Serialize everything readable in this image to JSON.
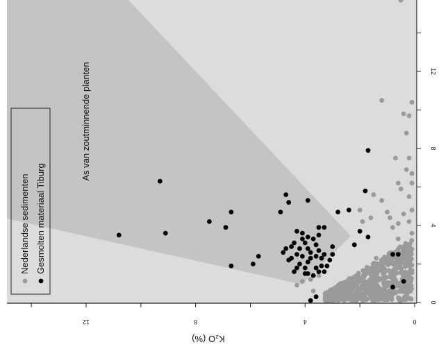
{
  "chart_data": {
    "type": "scatter",
    "orientation_note": "figure is shown rotated 180 degrees (upside down)",
    "xlabel": "K₂O (%)",
    "x_ticks": [
      0,
      4,
      8,
      12
    ],
    "x_tick_labels": [
      "0",
      "4",
      "8",
      "12"
    ],
    "y_ticks": [
      0,
      4,
      8,
      12
    ],
    "y_tick_labels": [
      "0",
      "4",
      "8",
      "12"
    ],
    "xlim": [
      0,
      15.5
    ],
    "ylim": [
      0,
      15.5
    ],
    "region_label": "As van zoutminnende planten",
    "region_color": "#c4c4c4",
    "background_color": "#dcdcdc",
    "legend_position": "right",
    "series": [
      {
        "name": "Nederlandse sedimenten",
        "color": "#9a9a9a",
        "cluster": {
          "x_range": [
            0.1,
            3.3
          ],
          "y_range": [
            0.1,
            3.2
          ]
        },
        "points": [
          [
            0.2,
            2.3
          ],
          [
            0.1,
            3.6
          ],
          [
            0.2,
            4.2
          ],
          [
            0.1,
            4.8
          ],
          [
            0.2,
            5.5
          ],
          [
            0.1,
            6.2
          ],
          [
            0.1,
            6.7
          ],
          [
            0.2,
            7.5
          ],
          [
            0.3,
            8.8
          ],
          [
            0.2,
            9.7
          ],
          [
            0.1,
            10.4
          ],
          [
            0.4,
            9.8
          ],
          [
            1.2,
            10.5
          ],
          [
            0.5,
            15.7
          ],
          [
            0.7,
            7.5
          ],
          [
            0.3,
            6.9
          ],
          [
            0.6,
            6.2
          ],
          [
            0.9,
            4.4
          ],
          [
            0.6,
            4.1
          ],
          [
            0.3,
            2.9
          ],
          [
            0.6,
            2.6
          ],
          [
            1.5,
            5.6
          ],
          [
            1.2,
            5.3
          ],
          [
            1.0,
            4.7
          ],
          [
            0.8,
            3.9
          ],
          [
            0.6,
            3.3
          ],
          [
            1.4,
            2.3
          ],
          [
            1.0,
            2.0
          ],
          [
            3.5,
            1.4
          ],
          [
            3.8,
            1.2
          ],
          [
            4.1,
            1.1
          ],
          [
            4.3,
            0.9
          ],
          [
            3.7,
            0.6
          ],
          [
            1.6,
            4.4
          ],
          [
            1.9,
            4.2
          ],
          [
            2.0,
            4.8
          ],
          [
            0.4,
            2.9
          ],
          [
            2.2,
            3.0
          ],
          [
            0.5,
            5.9
          ],
          [
            0.4,
            4.6
          ]
        ]
      },
      {
        "name": "Gesmolten materiaal Tiburg",
        "color": "#000000",
        "points": [
          [
            10.8,
            3.5
          ],
          [
            9.3,
            6.3
          ],
          [
            9.1,
            3.6
          ],
          [
            7.5,
            4.2
          ],
          [
            6.9,
            3.9
          ],
          [
            6.7,
            4.7
          ],
          [
            6.7,
            1.9
          ],
          [
            5.9,
            2.0
          ],
          [
            5.7,
            2.4
          ],
          [
            4.9,
            4.7
          ],
          [
            4.7,
            5.6
          ],
          [
            4.6,
            5.2
          ],
          [
            4.8,
            2.6
          ],
          [
            4.3,
            3.7
          ],
          [
            4.1,
            3.3
          ],
          [
            3.9,
            5.3
          ],
          [
            3.5,
            3.9
          ],
          [
            3.5,
            3.5
          ],
          [
            3.3,
            3.9
          ],
          [
            3.6,
            2.4
          ],
          [
            3.4,
            2.3
          ],
          [
            3.0,
            2.9
          ],
          [
            3.0,
            2.5
          ],
          [
            2.8,
            4.7
          ],
          [
            2.4,
            4.8
          ],
          [
            2.2,
            3.0
          ],
          [
            2.0,
            3.7
          ],
          [
            1.8,
            5.8
          ],
          [
            1.7,
            7.9
          ],
          [
            1.7,
            3.4
          ],
          [
            0.8,
            2.5
          ],
          [
            0.6,
            2.5
          ],
          [
            0.4,
            1.1
          ],
          [
            0.8,
            0.8
          ],
          [
            3.8,
            0.1
          ],
          [
            3.6,
            0.3
          ],
          [
            3.9,
            1.5
          ],
          [
            3.7,
            1.4
          ],
          [
            4.0,
            1.8
          ],
          [
            4.2,
            2.0
          ],
          [
            4.5,
            2.3
          ],
          [
            3.9,
            2.1
          ],
          [
            3.6,
            1.8
          ],
          [
            3.3,
            1.6
          ],
          [
            3.2,
            1.9
          ],
          [
            4.4,
            1.6
          ],
          [
            4.1,
            2.4
          ],
          [
            3.8,
            2.6
          ],
          [
            4.5,
            2.9
          ],
          [
            4.3,
            2.5
          ],
          [
            4.2,
            2.8
          ],
          [
            3.9,
            2.8
          ],
          [
            4.0,
            3.1
          ],
          [
            3.7,
            3.3
          ],
          [
            3.6,
            3.0
          ],
          [
            3.5,
            2.7
          ],
          [
            3.3,
            2.5
          ],
          [
            3.1,
            2.2
          ],
          [
            4.6,
            2.2
          ],
          [
            4.7,
            2.8
          ],
          [
            3.8,
            2.3
          ],
          [
            4.0,
            1.5
          ],
          [
            3.5,
            1.6
          ],
          [
            4.1,
            3.6
          ],
          [
            3.9,
            3.4
          ],
          [
            4.4,
            3.1
          ],
          [
            3.4,
            1.9
          ],
          [
            4.3,
            1.8
          ]
        ]
      }
    ]
  }
}
